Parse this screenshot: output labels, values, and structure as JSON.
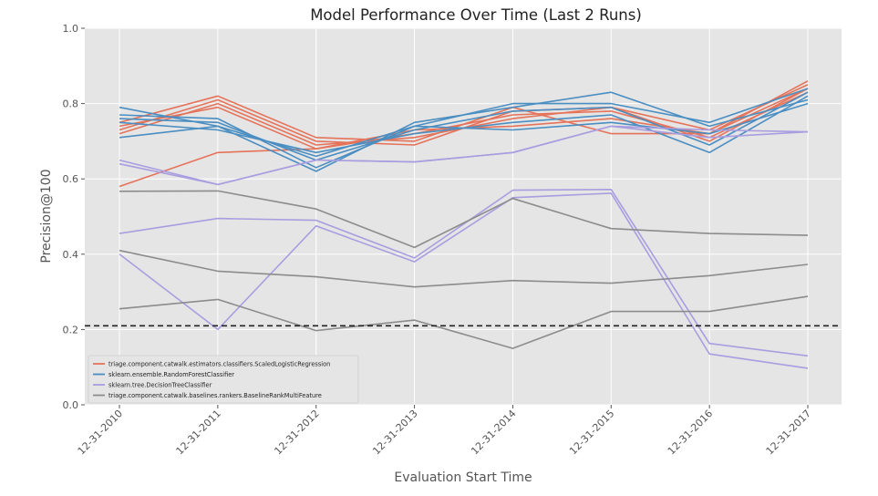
{
  "chart_data": {
    "type": "line",
    "title": "Model Performance Over Time (Last 2 Runs)",
    "xlabel": "Evaluation Start Time",
    "ylabel": "Precision@100",
    "categories": [
      "12-31-2010",
      "12-31-2011",
      "12-31-2012",
      "12-31-2013",
      "12-31-2014",
      "12-31-2015",
      "12-31-2016",
      "12-31-2017"
    ],
    "ylim": [
      0,
      1.0
    ],
    "yticks": [
      "0.0",
      "0.2",
      "0.4",
      "0.6",
      "0.8",
      "1.0"
    ],
    "grid": true,
    "reference_line": {
      "y": 0.21,
      "style": "dashed",
      "color": "#222222"
    },
    "legend_position": "lower-left",
    "model_groups": [
      {
        "name": "triage.component.catwalk.estimators.classifiers.ScaledLogisticRegression",
        "color": "#e5735a",
        "lines": [
          [
            0.75,
            0.82,
            0.71,
            0.7,
            0.79,
            0.72,
            0.72,
            0.86
          ],
          [
            0.73,
            0.81,
            0.7,
            0.69,
            0.78,
            0.79,
            0.73,
            0.85
          ],
          [
            0.72,
            0.8,
            0.69,
            0.71,
            0.76,
            0.79,
            0.7,
            0.84
          ],
          [
            0.74,
            0.79,
            0.68,
            0.72,
            0.77,
            0.78,
            0.71,
            0.83
          ],
          [
            0.58,
            0.67,
            0.68,
            0.73,
            0.74,
            0.76,
            0.72,
            0.84
          ]
        ]
      },
      {
        "name": "sklearn.ensemble.RandomForestClassifier",
        "color": "#4a8ec2",
        "lines": [
          [
            0.79,
            0.74,
            0.62,
            0.75,
            0.79,
            0.83,
            0.74,
            0.81
          ],
          [
            0.77,
            0.76,
            0.63,
            0.74,
            0.8,
            0.8,
            0.75,
            0.84
          ],
          [
            0.76,
            0.75,
            0.65,
            0.73,
            0.78,
            0.79,
            0.69,
            0.83
          ],
          [
            0.75,
            0.73,
            0.67,
            0.72,
            0.75,
            0.77,
            0.67,
            0.82
          ],
          [
            0.71,
            0.74,
            0.66,
            0.74,
            0.73,
            0.75,
            0.72,
            0.8
          ]
        ]
      },
      {
        "name": "sklearn.tree.DecisionTreeClassifier",
        "color": "#a99de0",
        "lines": [
          [
            0.65,
            0.585,
            0.65,
            0.645,
            0.67,
            0.74,
            0.73,
            0.725
          ],
          [
            0.64,
            0.585,
            0.65,
            0.645,
            0.67,
            0.74,
            0.71,
            0.725
          ],
          [
            0.455,
            0.495,
            0.49,
            0.39,
            0.57,
            0.572,
            0.163,
            0.13
          ],
          [
            0.4,
            0.2,
            0.475,
            0.38,
            0.55,
            0.562,
            0.135,
            0.097
          ]
        ]
      },
      {
        "name": "triage.component.catwalk.baselines.rankers.BaselineRankMultiFeature",
        "color": "#8c8c8c",
        "lines": [
          [
            0.567,
            0.568,
            0.52,
            0.418,
            0.548,
            0.468,
            0.455,
            0.45
          ],
          [
            0.41,
            0.355,
            0.34,
            0.313,
            0.33,
            0.323,
            0.343,
            0.373
          ],
          [
            0.255,
            0.28,
            0.197,
            0.225,
            0.15,
            0.248,
            0.248,
            0.288
          ]
        ]
      }
    ]
  }
}
